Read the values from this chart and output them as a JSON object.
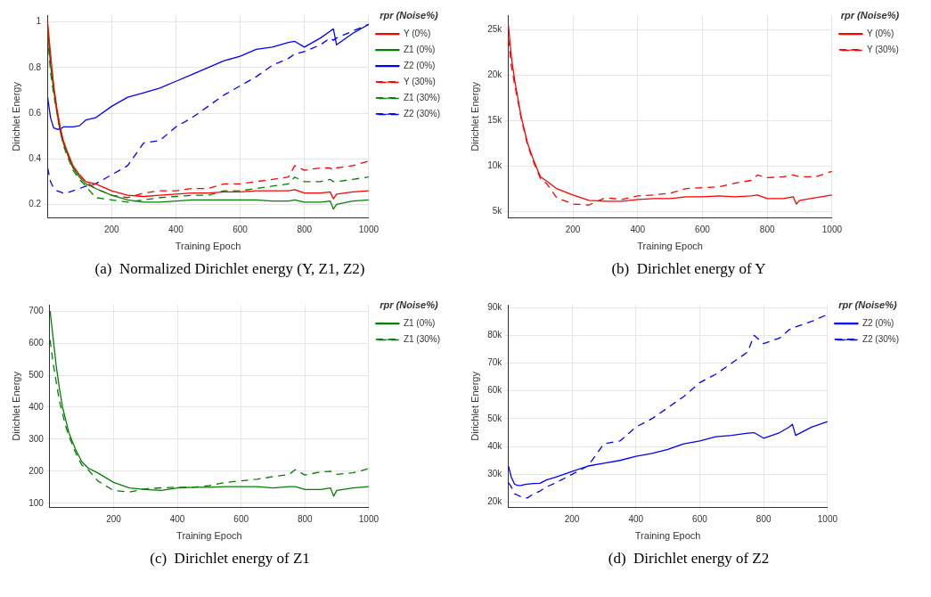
{
  "chart_data": [
    {
      "type": "line",
      "title": "(a)  Normalized Dirichlet energy (Y, Z1, Z2)",
      "xlabel": "Training Epoch",
      "ylabel": "Dirichlet Energy",
      "legend_title": "rpr (Noise%)",
      "legend": "right",
      "grid": true,
      "marker": "none",
      "x": [
        1,
        10,
        20,
        30,
        40,
        50,
        60,
        80,
        100,
        120,
        150,
        200,
        250,
        300,
        350,
        400,
        450,
        500,
        550,
        600,
        650,
        700,
        750,
        770,
        800,
        850,
        880,
        890,
        900,
        950,
        1000
      ],
      "xlim": [
        0,
        1000
      ],
      "xticks": [
        200,
        400,
        600,
        800,
        1000
      ],
      "ylim": [
        0.14,
        1.03
      ],
      "yticks": [
        0.2,
        0.4,
        0.6,
        0.8,
        1
      ],
      "series": [
        {
          "name": "Y (0%)",
          "color": "#ff0000",
          "line_style": "solid",
          "values": [
            1,
            0.86,
            0.72,
            0.62,
            0.54,
            0.48,
            0.44,
            0.37,
            0.33,
            0.3,
            0.29,
            0.26,
            0.24,
            0.235,
            0.24,
            0.245,
            0.25,
            0.25,
            0.255,
            0.255,
            0.26,
            0.26,
            0.26,
            0.265,
            0.25,
            0.25,
            0.255,
            0.225,
            0.245,
            0.255,
            0.26
          ]
        },
        {
          "name": "Z1 (0%)",
          "color": "#008000",
          "line_style": "solid",
          "values": [
            0.98,
            0.81,
            0.7,
            0.61,
            0.53,
            0.47,
            0.43,
            0.36,
            0.32,
            0.29,
            0.27,
            0.24,
            0.22,
            0.21,
            0.21,
            0.215,
            0.22,
            0.22,
            0.22,
            0.22,
            0.22,
            0.215,
            0.215,
            0.22,
            0.21,
            0.21,
            0.215,
            0.18,
            0.2,
            0.215,
            0.22
          ]
        },
        {
          "name": "Z2 (0%)",
          "color": "#0000ff",
          "line_style": "solid",
          "values": [
            0.67,
            0.58,
            0.535,
            0.53,
            0.53,
            0.54,
            0.54,
            0.54,
            0.545,
            0.57,
            0.58,
            0.63,
            0.67,
            0.69,
            0.71,
            0.74,
            0.77,
            0.8,
            0.83,
            0.85,
            0.88,
            0.89,
            0.91,
            0.915,
            0.89,
            0.93,
            0.96,
            0.97,
            0.9,
            0.95,
            0.99
          ]
        },
        {
          "name": "Y (30%)",
          "color": "#ff0000",
          "line_style": "dashed",
          "values": [
            0.96,
            0.84,
            0.71,
            0.6,
            0.52,
            0.47,
            0.43,
            0.36,
            0.33,
            0.3,
            0.27,
            0.24,
            0.23,
            0.25,
            0.26,
            0.26,
            0.27,
            0.27,
            0.29,
            0.29,
            0.3,
            0.31,
            0.32,
            0.37,
            0.35,
            0.36,
            0.36,
            0.35,
            0.36,
            0.37,
            0.39
          ]
        },
        {
          "name": "Z1 (30%)",
          "color": "#008000",
          "line_style": "dashed",
          "values": [
            0.94,
            0.78,
            0.68,
            0.6,
            0.52,
            0.46,
            0.42,
            0.35,
            0.31,
            0.28,
            0.23,
            0.22,
            0.21,
            0.22,
            0.23,
            0.235,
            0.24,
            0.24,
            0.26,
            0.26,
            0.27,
            0.28,
            0.29,
            0.32,
            0.3,
            0.3,
            0.31,
            0.3,
            0.3,
            0.31,
            0.32
          ]
        },
        {
          "name": "Z2 (30%)",
          "color": "#0000ff",
          "line_style": "dashed",
          "values": [
            0.36,
            0.3,
            0.27,
            0.26,
            0.255,
            0.25,
            0.25,
            0.26,
            0.27,
            0.28,
            0.29,
            0.33,
            0.37,
            0.47,
            0.48,
            0.54,
            0.58,
            0.63,
            0.68,
            0.72,
            0.76,
            0.81,
            0.84,
            0.86,
            0.87,
            0.9,
            0.93,
            0.92,
            0.93,
            0.96,
            0.99
          ]
        }
      ]
    },
    {
      "type": "line",
      "title": "(b)  Dirichlet energy of Y",
      "xlabel": "Training Epoch",
      "ylabel": "Dirichlet Energy",
      "legend_title": "rpr (Noise%)",
      "legend": "right",
      "grid": true,
      "marker": "none",
      "x": [
        1,
        10,
        20,
        30,
        40,
        50,
        60,
        80,
        100,
        120,
        150,
        200,
        250,
        300,
        350,
        400,
        450,
        500,
        550,
        600,
        650,
        700,
        750,
        770,
        800,
        850,
        880,
        890,
        900,
        950,
        1000
      ],
      "xlim": [
        0,
        1000
      ],
      "xticks": [
        200,
        400,
        600,
        800,
        1000
      ],
      "ylim": [
        4250,
        26600
      ],
      "yticks": [
        {
          "value": 5000,
          "label": "5k"
        },
        {
          "value": 10000,
          "label": "10k"
        },
        {
          "value": 15000,
          "label": "15k"
        },
        {
          "value": 20000,
          "label": "20k"
        },
        {
          "value": 25000,
          "label": "25k"
        }
      ],
      "series": [
        {
          "name": "Y (0%)",
          "color": "#ff0000",
          "line_style": "solid",
          "values": [
            25500,
            22000,
            19500,
            17500,
            15500,
            14000,
            12500,
            10500,
            8800,
            8300,
            7500,
            6800,
            6200,
            6100,
            6100,
            6300,
            6400,
            6400,
            6600,
            6600,
            6700,
            6600,
            6700,
            6800,
            6400,
            6400,
            6600,
            5800,
            6200,
            6500,
            6800
          ]
        },
        {
          "name": "Y (30%)",
          "color": "#ff0000",
          "line_style": "dashed",
          "values": [
            24000,
            21000,
            19000,
            17200,
            15300,
            13800,
            12300,
            10300,
            8600,
            8000,
            6500,
            5800,
            5700,
            6500,
            6300,
            6700,
            6800,
            7000,
            7500,
            7600,
            7700,
            8100,
            8400,
            9000,
            8700,
            8800,
            9000,
            8900,
            8800,
            8800,
            9400
          ]
        }
      ]
    },
    {
      "type": "line",
      "title": "(c)  Dirichlet energy of Z1",
      "xlabel": "Training Epoch",
      "ylabel": "Dirichlet Energy",
      "legend_title": "rpr (Noise%)",
      "legend": "right",
      "grid": true,
      "marker": "none",
      "x": [
        1,
        10,
        20,
        30,
        40,
        50,
        60,
        80,
        100,
        120,
        150,
        200,
        250,
        300,
        350,
        400,
        450,
        500,
        550,
        600,
        650,
        700,
        750,
        770,
        800,
        850,
        880,
        890,
        900,
        950,
        1000
      ],
      "xlim": [
        0,
        1000
      ],
      "xticks": [
        200,
        400,
        600,
        800,
        1000
      ],
      "ylim": [
        86,
        720
      ],
      "yticks": [
        100,
        200,
        300,
        400,
        500,
        600,
        700
      ],
      "series": [
        {
          "name": "Z1 (0%)",
          "color": "#008000",
          "line_style": "solid",
          "values": [
            700,
            620,
            530,
            460,
            400,
            360,
            320,
            270,
            230,
            210,
            195,
            165,
            148,
            143,
            140,
            148,
            150,
            150,
            152,
            152,
            152,
            148,
            152,
            152,
            143,
            143,
            148,
            122,
            140,
            148,
            152
          ]
        },
        {
          "name": "Z1 (30%)",
          "color": "#008000",
          "line_style": "dashed",
          "values": [
            610,
            540,
            480,
            420,
            380,
            340,
            310,
            260,
            220,
            205,
            170,
            140,
            135,
            145,
            148,
            150,
            150,
            155,
            165,
            170,
            175,
            183,
            190,
            205,
            188,
            198,
            200,
            195,
            190,
            195,
            208
          ]
        }
      ]
    },
    {
      "type": "line",
      "title": "(d)  Dirichlet energy of Z2",
      "xlabel": "Training Epoch",
      "ylabel": "Dirichlet Energy",
      "legend_title": "rpr (Noise%)",
      "legend": "right",
      "grid": true,
      "marker": "none",
      "x": [
        1,
        10,
        20,
        30,
        40,
        50,
        60,
        80,
        100,
        120,
        150,
        200,
        250,
        300,
        350,
        400,
        450,
        500,
        550,
        600,
        650,
        700,
        750,
        770,
        800,
        850,
        880,
        890,
        900,
        950,
        1000
      ],
      "xlim": [
        0,
        1000
      ],
      "xticks": [
        200,
        400,
        600,
        800,
        1000
      ],
      "ylim": [
        18000,
        91000
      ],
      "yticks": [
        {
          "value": 20000,
          "label": "20k"
        },
        {
          "value": 30000,
          "label": "30k"
        },
        {
          "value": 40000,
          "label": "40k"
        },
        {
          "value": 50000,
          "label": "50k"
        },
        {
          "value": 60000,
          "label": "60k"
        },
        {
          "value": 70000,
          "label": "70k"
        },
        {
          "value": 80000,
          "label": "80k"
        },
        {
          "value": 90000,
          "label": "90k"
        }
      ],
      "series": [
        {
          "name": "Z2 (0%)",
          "color": "#0000ff",
          "line_style": "solid",
          "values": [
            33000,
            29000,
            26500,
            26000,
            26000,
            26300,
            26500,
            26700,
            26800,
            28000,
            29000,
            31000,
            33000,
            34000,
            35000,
            36500,
            37500,
            39000,
            41000,
            42000,
            43500,
            44000,
            44800,
            45000,
            43000,
            45000,
            47000,
            48000,
            44000,
            47000,
            49000
          ]
        },
        {
          "name": "Z2 (30%)",
          "color": "#0000ff",
          "line_style": "dashed",
          "values": [
            27000,
            25500,
            23000,
            22500,
            22000,
            21700,
            21500,
            23000,
            24000,
            25500,
            27000,
            30000,
            33000,
            41000,
            42000,
            47000,
            50000,
            54000,
            58000,
            63000,
            66000,
            70000,
            74000,
            80000,
            77000,
            79000,
            82000,
            82500,
            83000,
            85000,
            87500
          ]
        }
      ]
    }
  ]
}
